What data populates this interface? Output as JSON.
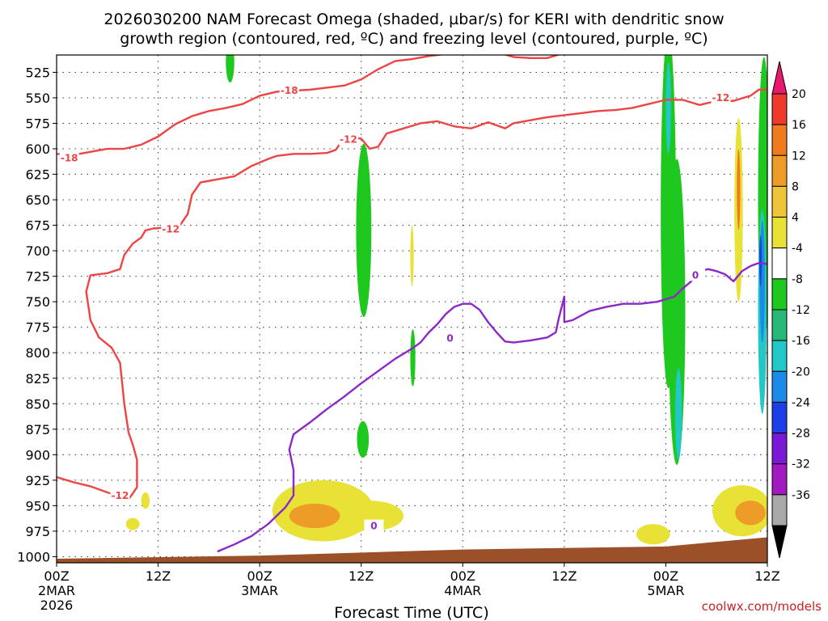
{
  "chart_data": {
    "type": "heatmap",
    "title_line1": "2026030200 NAM Forecast Omega (shaded, µbar/s) for KERI with dendritic snow",
    "title_line2": "growth region (contoured, red, ºC) and freezing level (contoured, purple, ºC)",
    "xlabel": "Forecast Time (UTC)",
    "credit": "coolwx.com/models",
    "x_unit": "forecast hour",
    "xlim": [
      0,
      84
    ],
    "y_unit": "mb",
    "ylim": [
      1000,
      500
    ],
    "y_ticks": [
      525,
      550,
      575,
      600,
      625,
      650,
      675,
      700,
      725,
      750,
      775,
      800,
      825,
      850,
      875,
      900,
      925,
      950,
      975,
      1000
    ],
    "x_ticks": [
      {
        "hour": 0,
        "label": "00Z",
        "sub": "2MAR",
        "sub2": "2026"
      },
      {
        "hour": 12,
        "label": "12Z",
        "sub": "",
        "sub2": ""
      },
      {
        "hour": 24,
        "label": "00Z",
        "sub": "3MAR",
        "sub2": ""
      },
      {
        "hour": 36,
        "label": "12Z",
        "sub": "",
        "sub2": ""
      },
      {
        "hour": 48,
        "label": "00Z",
        "sub": "4MAR",
        "sub2": ""
      },
      {
        "hour": 60,
        "label": "12Z",
        "sub": "",
        "sub2": ""
      },
      {
        "hour": 72,
        "label": "00Z",
        "sub": "5MAR",
        "sub2": ""
      },
      {
        "hour": 84,
        "label": "12Z",
        "sub": "",
        "sub2": ""
      }
    ],
    "grid": true,
    "colorbar": {
      "labels": [
        "20",
        "16",
        "12",
        "8",
        "4",
        "-4",
        "-8",
        "-12",
        "-16",
        "-20",
        "-24",
        "-28",
        "-32",
        "-36"
      ],
      "colors": [
        "#e8186e",
        "#ee3a2a",
        "#f07a1e",
        "#ee9c28",
        "#eec43a",
        "#e8e236",
        "#ffffff",
        "#1ec81e",
        "#28b878",
        "#22c8c8",
        "#1e8ae8",
        "#1e3ee8",
        "#7a18d8",
        "#a01ac0",
        "#a8a8a8",
        "#000000"
      ]
    },
    "contours": [
      {
        "name": "-18",
        "color": "#ee4444",
        "label_positions": [
          [
            1.5,
            609
          ],
          [
            27.5,
            543
          ]
        ],
        "points": [
          [
            0,
            605
          ],
          [
            2,
            606
          ],
          [
            4,
            603
          ],
          [
            6,
            600
          ],
          [
            8,
            600
          ],
          [
            10,
            596
          ],
          [
            12,
            588
          ],
          [
            14,
            576
          ],
          [
            16,
            568
          ],
          [
            18,
            563
          ],
          [
            20,
            560
          ],
          [
            22,
            556
          ],
          [
            24,
            548
          ],
          [
            26,
            544
          ],
          [
            28,
            543
          ],
          [
            30,
            542
          ],
          [
            32,
            540
          ],
          [
            34,
            538
          ],
          [
            36,
            532
          ],
          [
            38,
            522
          ],
          [
            40,
            514
          ],
          [
            42,
            512
          ],
          [
            44,
            509
          ],
          [
            46,
            507
          ],
          [
            48,
            505
          ],
          [
            50,
            503
          ],
          [
            52,
            505
          ],
          [
            54,
            510
          ],
          [
            56,
            511
          ],
          [
            58,
            511
          ],
          [
            60,
            506
          ],
          [
            62,
            503
          ],
          [
            64,
            502
          ],
          [
            66,
            502
          ],
          [
            68,
            501
          ]
        ]
      },
      {
        "name": "-12",
        "color": "#ee4444",
        "label_positions": [
          [
            34.5,
            591
          ],
          [
            78.5,
            550
          ],
          [
            13.5,
            679
          ],
          [
            7.5,
            940
          ]
        ],
        "points": [
          [
            0,
            922
          ],
          [
            2,
            927
          ],
          [
            4,
            931
          ],
          [
            6,
            937
          ],
          [
            8,
            942
          ],
          [
            8.5,
            944
          ],
          [
            9.5,
            932
          ],
          [
            9.5,
            905
          ],
          [
            9,
            890
          ],
          [
            8.5,
            878
          ],
          [
            8,
            850
          ],
          [
            7.5,
            810
          ],
          [
            6.5,
            795
          ],
          [
            5,
            785
          ],
          [
            4,
            768
          ],
          [
            3.5,
            740
          ],
          [
            4,
            724
          ],
          [
            6,
            722
          ],
          [
            7.5,
            718
          ],
          [
            8,
            704
          ],
          [
            9,
            693
          ],
          [
            10,
            687
          ],
          [
            10.5,
            680
          ],
          [
            11.5,
            678
          ],
          [
            12,
            678
          ],
          [
            13,
            676
          ],
          [
            14.5,
            676
          ],
          [
            15.5,
            664
          ],
          [
            16,
            645
          ],
          [
            17,
            633
          ],
          [
            19,
            630
          ],
          [
            21,
            627
          ],
          [
            23,
            617
          ],
          [
            25,
            610
          ],
          [
            26,
            607
          ],
          [
            28,
            605
          ],
          [
            30,
            605
          ],
          [
            32,
            604
          ],
          [
            33,
            601
          ],
          [
            34,
            589
          ],
          [
            35,
            589
          ],
          [
            36,
            590
          ],
          [
            37,
            600
          ],
          [
            38,
            598
          ],
          [
            39,
            585
          ],
          [
            41,
            580
          ],
          [
            43,
            575
          ],
          [
            45,
            573
          ],
          [
            47,
            578
          ],
          [
            49,
            580
          ],
          [
            51,
            574
          ],
          [
            53,
            580
          ],
          [
            54,
            575
          ],
          [
            56,
            572
          ],
          [
            58,
            569
          ],
          [
            60,
            567
          ],
          [
            62,
            565
          ],
          [
            64,
            563
          ],
          [
            66,
            562
          ],
          [
            68,
            560
          ],
          [
            70,
            556
          ],
          [
            72,
            552
          ],
          [
            74,
            552
          ],
          [
            76,
            557
          ],
          [
            78,
            553
          ],
          [
            80,
            553
          ],
          [
            82,
            548
          ],
          [
            83,
            542
          ],
          [
            84,
            542
          ]
        ]
      },
      {
        "name": "0",
        "color": "#8c28c8",
        "label_positions": [
          [
            46.5,
            786
          ],
          [
            37.5,
            970
          ],
          [
            75.5,
            724
          ]
        ],
        "points": [
          [
            19,
            995
          ],
          [
            21,
            988
          ],
          [
            23,
            980
          ],
          [
            25,
            968
          ],
          [
            27,
            952
          ],
          [
            28,
            940
          ],
          [
            28,
            915
          ],
          [
            27.5,
            895
          ],
          [
            28,
            880
          ],
          [
            30,
            868
          ],
          [
            32,
            855
          ],
          [
            34,
            843
          ],
          [
            36,
            830
          ],
          [
            38,
            818
          ],
          [
            40,
            806
          ],
          [
            42,
            796
          ],
          [
            43,
            790
          ],
          [
            44,
            780
          ],
          [
            45,
            772
          ],
          [
            46,
            762
          ],
          [
            47,
            755
          ],
          [
            48,
            752
          ],
          [
            49,
            752
          ],
          [
            50,
            758
          ],
          [
            51,
            770
          ],
          [
            52,
            780
          ],
          [
            53,
            789
          ],
          [
            54,
            790
          ],
          [
            56,
            788
          ],
          [
            58,
            785
          ],
          [
            59,
            780
          ],
          [
            59.3,
            768
          ],
          [
            60,
            745
          ],
          [
            60,
            770
          ],
          [
            61,
            768
          ],
          [
            63,
            759
          ],
          [
            65,
            755
          ],
          [
            67,
            752
          ],
          [
            69,
            752
          ],
          [
            71,
            750
          ],
          [
            73,
            745
          ],
          [
            74,
            737
          ],
          [
            75,
            730
          ],
          [
            76,
            720
          ],
          [
            77,
            718
          ],
          [
            78,
            720
          ],
          [
            79,
            723
          ],
          [
            80,
            730
          ],
          [
            81,
            720
          ],
          [
            82,
            715
          ],
          [
            83,
            712
          ],
          [
            84,
            713
          ]
        ]
      }
    ],
    "omega_blobs": [
      {
        "level": "-8",
        "color": "#1ec81e",
        "center": [
          36.3,
          680
        ],
        "radius_h": 0.9,
        "radius_mb": 85
      },
      {
        "level": "-8",
        "color": "#1ec81e",
        "center": [
          20.5,
          515
        ],
        "radius_h": 0.5,
        "radius_mb": 20
      },
      {
        "level": "-8",
        "color": "#1ec81e",
        "center": [
          36.2,
          885
        ],
        "radius_h": 0.7,
        "radius_mb": 18
      },
      {
        "level": "-8",
        "color": "#1ec81e",
        "center": [
          42.1,
          805
        ],
        "radius_h": 0.3,
        "radius_mb": 28
      },
      {
        "level": "-8",
        "color": "#1ec81e",
        "center": [
          72.3,
          660
        ],
        "radius_h": 0.9,
        "radius_mb": 175
      },
      {
        "level": "-8",
        "color": "#1ec81e",
        "center": [
          73.3,
          760
        ],
        "radius_h": 1.0,
        "radius_mb": 150
      },
      {
        "level": "-8",
        "color": "#1ec81e",
        "center": [
          83.6,
          650
        ],
        "radius_h": 0.7,
        "radius_mb": 140
      },
      {
        "level": "-16",
        "color": "#22c8c8",
        "center": [
          72.3,
          560
        ],
        "radius_h": 0.3,
        "radius_mb": 45
      },
      {
        "level": "-16",
        "color": "#22c8c8",
        "center": [
          73.5,
          860
        ],
        "radius_h": 0.4,
        "radius_mb": 45
      },
      {
        "level": "-16",
        "color": "#22c8c8",
        "center": [
          83.4,
          760
        ],
        "radius_h": 0.5,
        "radius_mb": 100
      },
      {
        "level": "-20",
        "color": "#1e8ae8",
        "center": [
          83.4,
          730
        ],
        "radius_h": 0.3,
        "radius_mb": 60
      },
      {
        "level": "-24",
        "color": "#1e3ee8",
        "center": [
          83.2,
          710
        ],
        "radius_h": 0.15,
        "radius_mb": 25
      },
      {
        "level": "4",
        "color": "#e8e236",
        "center": [
          80.6,
          660
        ],
        "radius_h": 0.5,
        "radius_mb": 90
      },
      {
        "level": "12",
        "color": "#f07a1e",
        "center": [
          80.6,
          640
        ],
        "radius_h": 0.2,
        "radius_mb": 40
      },
      {
        "level": "4",
        "color": "#e8e236",
        "center": [
          42.0,
          705
        ],
        "radius_h": 0.2,
        "radius_mb": 30
      },
      {
        "level": "4",
        "color": "#e8e236",
        "center": [
          31.5,
          955
        ],
        "radius_h": 6,
        "radius_mb": 30
      },
      {
        "level": "4",
        "color": "#e8e236",
        "center": [
          37,
          960
        ],
        "radius_h": 4,
        "radius_mb": 15
      },
      {
        "level": "8",
        "color": "#ee9c28",
        "center": [
          30.5,
          960
        ],
        "radius_h": 3,
        "radius_mb": 12
      },
      {
        "level": "4",
        "color": "#e8e236",
        "center": [
          10.5,
          945
        ],
        "radius_h": 0.5,
        "radius_mb": 8
      },
      {
        "level": "4",
        "color": "#e8e236",
        "center": [
          9.0,
          968
        ],
        "radius_h": 0.8,
        "radius_mb": 6
      },
      {
        "level": "4",
        "color": "#e8e236",
        "center": [
          81.0,
          955
        ],
        "radius_h": 3.5,
        "radius_mb": 25
      },
      {
        "level": "8",
        "color": "#ee9c28",
        "center": [
          82.0,
          957
        ],
        "radius_h": 1.8,
        "radius_mb": 12
      },
      {
        "level": "4",
        "color": "#e8e236",
        "center": [
          70.5,
          978
        ],
        "radius_h": 2,
        "radius_mb": 10
      }
    ],
    "terrain_color": "#9c5028",
    "terrain_top_mb": [
      [
        0,
        1002
      ],
      [
        24,
        999
      ],
      [
        48,
        993
      ],
      [
        72,
        990
      ],
      [
        84,
        981
      ]
    ]
  }
}
